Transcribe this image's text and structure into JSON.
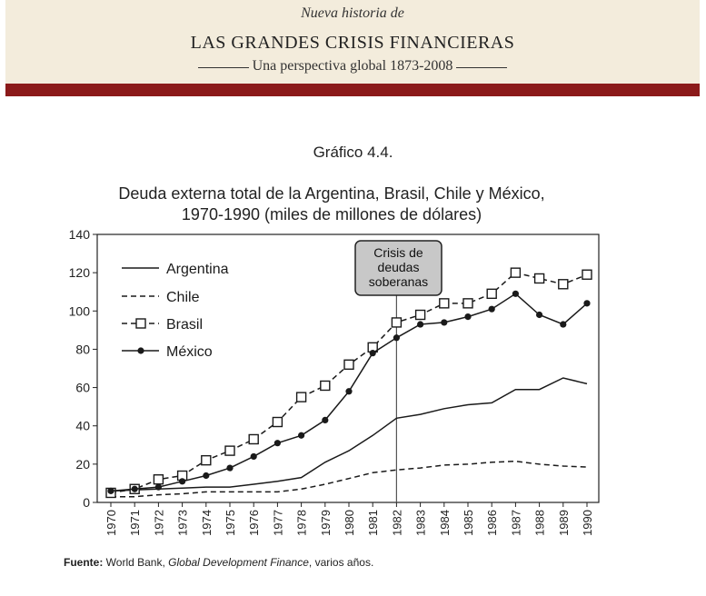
{
  "header": {
    "pretitle": "Nueva historia de",
    "title": "LAS GRANDES CRISIS FINANCIERAS",
    "subtitle": "Una perspectiva global 1873-2008"
  },
  "figure": {
    "number": "Gráfico 4.4.",
    "title_line1": "Deuda externa total de la Argentina, Brasil, Chile y México,",
    "title_line2": "1970-1990 (miles de millones de dólares)"
  },
  "annotation": {
    "lines": [
      "Crisis de",
      "deudas",
      "soberanas"
    ],
    "year": 1982
  },
  "source": {
    "label": "Fuente:",
    "text_before": " World Bank, ",
    "italic": "Global Development Finance",
    "text_after": ", varios años."
  },
  "chart_data": {
    "type": "line",
    "title": "Deuda externa total de la Argentina, Brasil, Chile y México, 1970-1990 (miles de millones de dólares)",
    "x": [
      1970,
      1971,
      1972,
      1973,
      1974,
      1975,
      1976,
      1977,
      1978,
      1979,
      1980,
      1981,
      1982,
      1983,
      1984,
      1985,
      1986,
      1987,
      1988,
      1989,
      1990
    ],
    "xlabels": [
      "1970",
      "1971",
      "1972",
      "1973",
      "1974",
      "1975",
      "1976",
      "1977",
      "1978",
      "1979",
      "1980",
      "1981",
      "1982",
      "1983",
      "1984",
      "1985",
      "1986",
      "1987",
      "1988",
      "1989",
      "1990"
    ],
    "ylim": [
      0,
      140
    ],
    "yticks": [
      0,
      20,
      40,
      60,
      80,
      100,
      120,
      140
    ],
    "grid": false,
    "legend_position": "top-left",
    "series": [
      {
        "name": "Argentina",
        "style": "solid",
        "marker": "none",
        "values": [
          6,
          6.5,
          7,
          7.5,
          8,
          8,
          9.5,
          11,
          13,
          21,
          27,
          35,
          44,
          46,
          49,
          51,
          52,
          59,
          59,
          65,
          62
        ]
      },
      {
        "name": "Chile",
        "style": "dashed",
        "marker": "none",
        "values": [
          3,
          3,
          4,
          4.5,
          5.5,
          5.5,
          5.5,
          5.5,
          7,
          9.5,
          12.5,
          15.5,
          17,
          18,
          19.5,
          20,
          21,
          21.5,
          20,
          19,
          18.5
        ]
      },
      {
        "name": "Brasil",
        "style": "dashed",
        "marker": "open-square",
        "values": [
          5,
          7,
          12,
          14,
          22,
          27,
          33,
          42,
          55,
          61,
          72,
          81,
          94,
          98,
          104,
          104,
          109,
          120,
          117,
          114,
          119
        ]
      },
      {
        "name": "México",
        "style": "solid",
        "marker": "filled-circle",
        "values": [
          6,
          7,
          8,
          11,
          14,
          18,
          24,
          31,
          35,
          43,
          58,
          78,
          86,
          93,
          94,
          97,
          101,
          109,
          98,
          93,
          104
        ]
      }
    ]
  }
}
